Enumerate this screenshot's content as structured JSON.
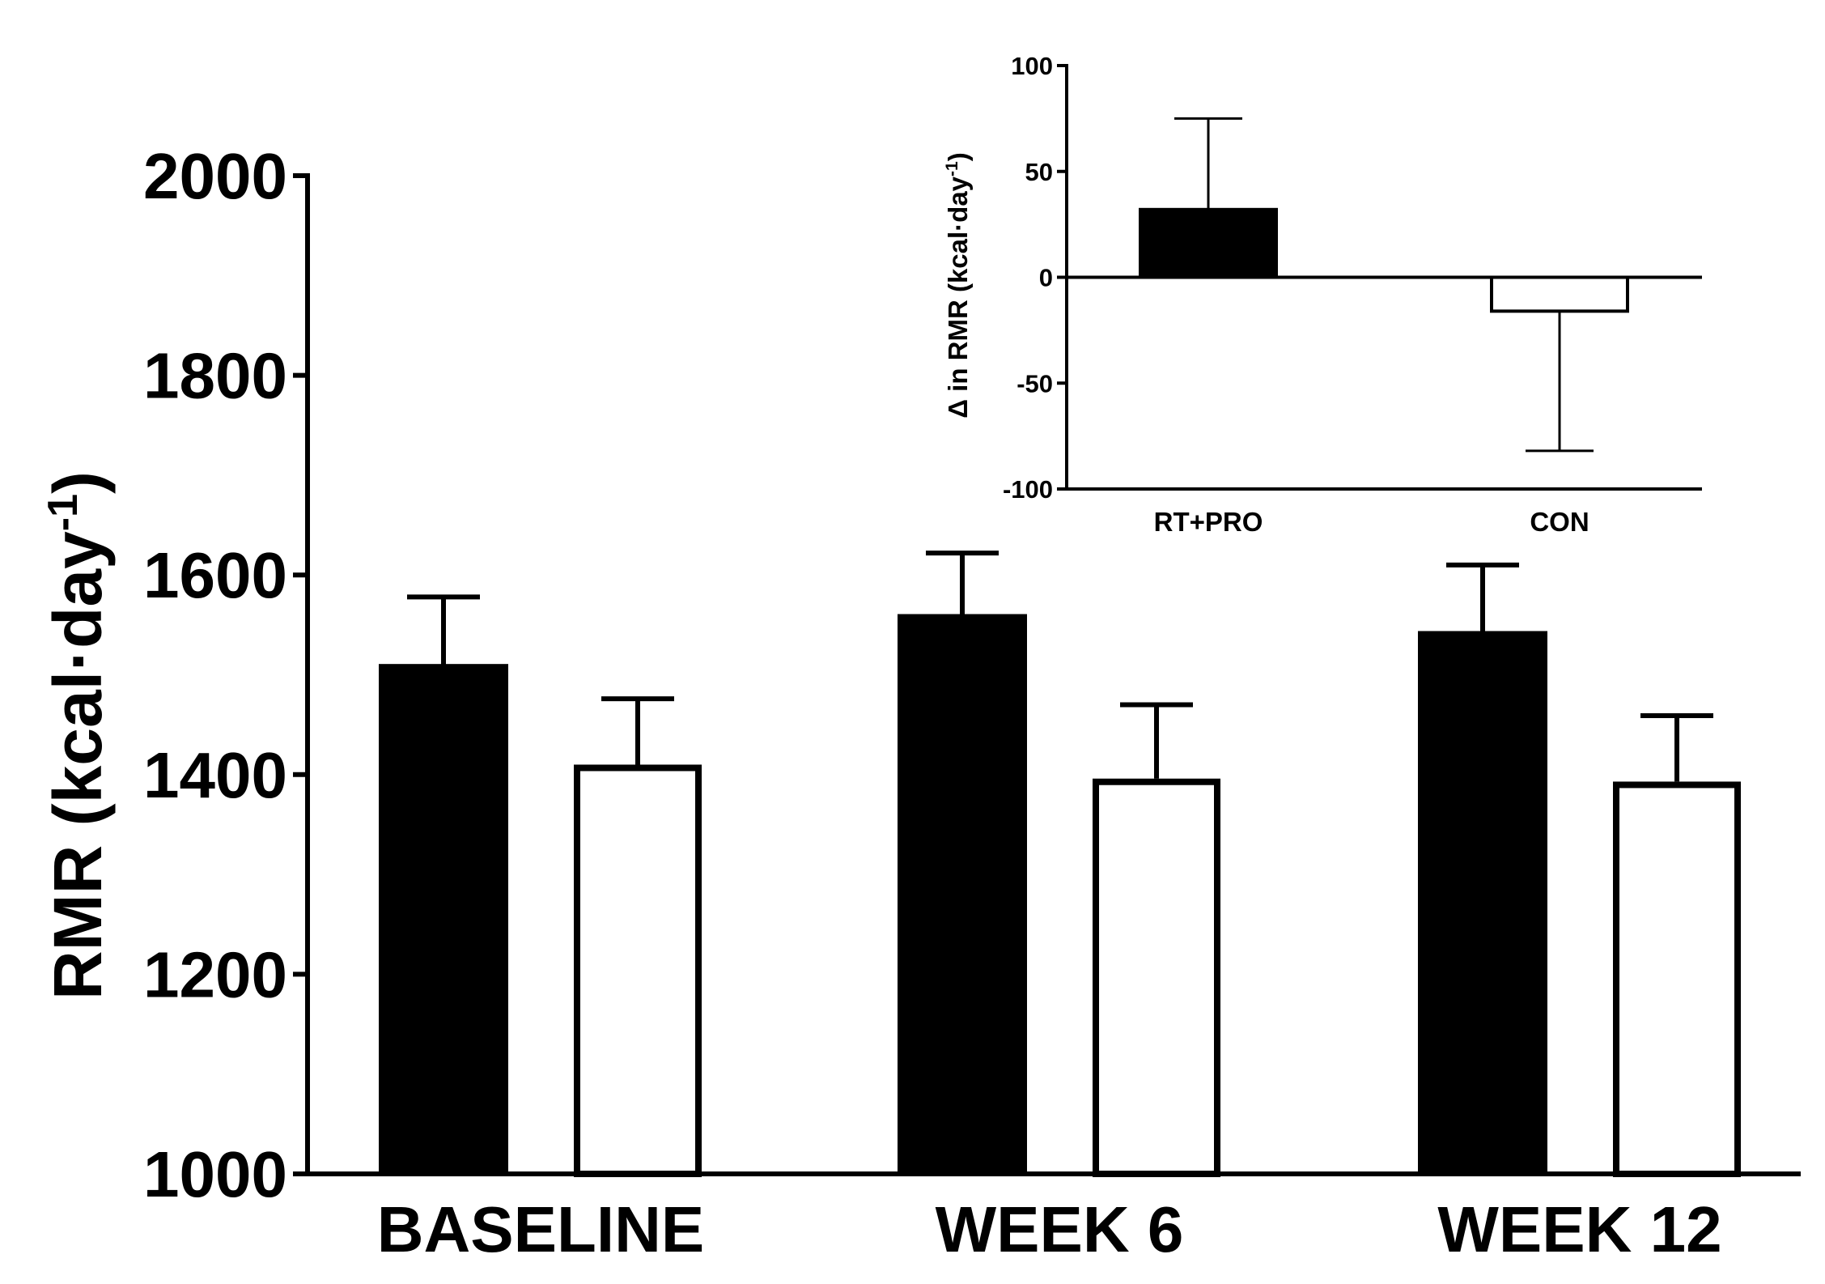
{
  "chart_data": [
    {
      "id": "main",
      "type": "bar",
      "categories": [
        "BASELINE",
        "WEEK 6",
        "WEEK 12"
      ],
      "series": [
        {
          "name": "RT+PRO",
          "fill": "#000000",
          "values": [
            1510,
            1560,
            1543
          ],
          "error": [
            68,
            62,
            67
          ]
        },
        {
          "name": "CON",
          "fill": "#ffffff",
          "values": [
            1410,
            1396,
            1393
          ],
          "error": [
            66,
            74,
            66
          ]
        }
      ],
      "ylabel_main": "RMR (kcal·day",
      "ylabel_sup": "-1",
      "ylabel_close": ")",
      "ylim": [
        1000,
        2000
      ],
      "yticks": [
        "1000",
        "1200",
        "1400",
        "1600",
        "1800",
        "2000"
      ],
      "ytick_values": [
        1000,
        1200,
        1400,
        1600,
        1800,
        2000
      ]
    },
    {
      "id": "inset",
      "type": "bar",
      "categories": [
        "RT+PRO",
        "CON"
      ],
      "values": [
        32,
        -16
      ],
      "error": [
        43,
        66
      ],
      "fills": [
        "#000000",
        "#ffffff"
      ],
      "ylabel_main": "Δ  in RMR (kcal·day",
      "ylabel_sup": "-1",
      "ylabel_close": ")",
      "ylim": [
        -100,
        100
      ],
      "yticks": [
        "-100",
        "-50",
        "0",
        "50",
        "100"
      ],
      "ytick_values": [
        -100,
        -50,
        0,
        50,
        100
      ]
    }
  ]
}
